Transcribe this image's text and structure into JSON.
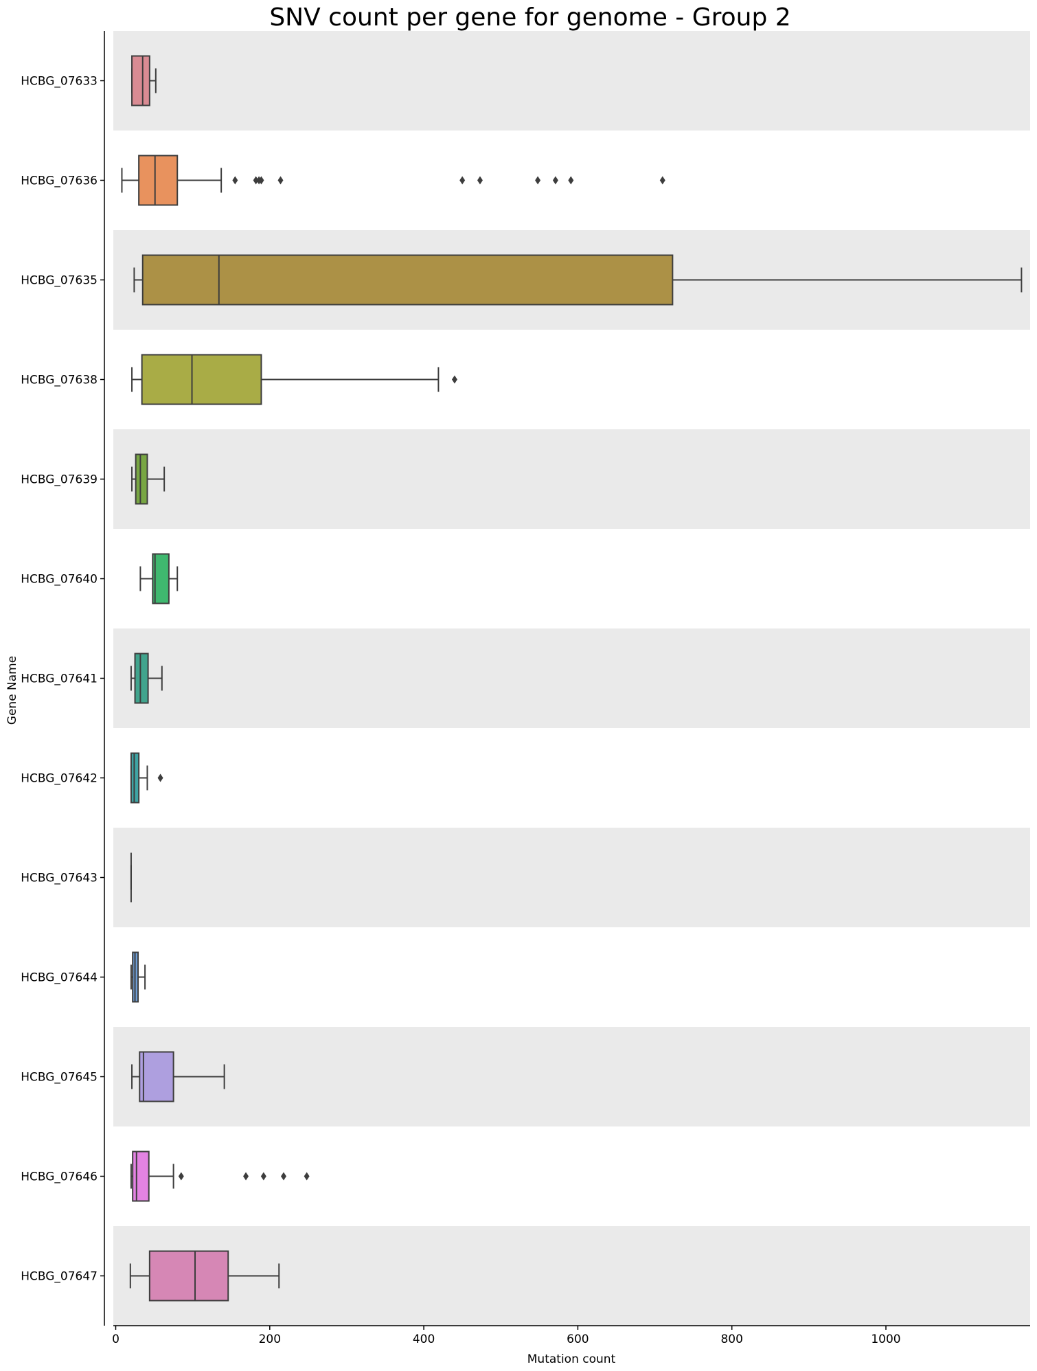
{
  "chart_data": {
    "type": "boxplot",
    "orientation": "horizontal",
    "title": "SNV count per gene for genome - Group 2",
    "xlabel": "Mutation count",
    "ylabel": "Gene Name",
    "xlim": [
      -5,
      1190
    ],
    "xticks": [
      0,
      200,
      400,
      600,
      800,
      1000
    ],
    "grid": false,
    "row_shading": "alternating-gray",
    "band_color": "#eaeaea",
    "series": [
      {
        "gene": "HCBG_07633",
        "color": "#d98b93",
        "whisker_low": 21,
        "q1": 21,
        "median": 35,
        "q3": 44,
        "whisker_high": 52,
        "outliers": []
      },
      {
        "gene": "HCBG_07636",
        "color": "#e8925e",
        "whisker_low": 8,
        "q1": 30,
        "median": 51,
        "q3": 80,
        "whisker_high": 137,
        "outliers": [
          155,
          182,
          186,
          189,
          214,
          450,
          473,
          548,
          571,
          591,
          710
        ]
      },
      {
        "gene": "HCBG_07635",
        "color": "#ac9146",
        "whisker_low": 24,
        "q1": 35,
        "median": 134,
        "q3": 723,
        "whisker_high": 1176,
        "outliers": []
      },
      {
        "gene": "HCBG_07638",
        "color": "#a9ac46",
        "whisker_low": 21,
        "q1": 34,
        "median": 99,
        "q3": 189,
        "whisker_high": 419,
        "outliers": [
          440
        ]
      },
      {
        "gene": "HCBG_07639",
        "color": "#78a643",
        "whisker_low": 21,
        "q1": 26,
        "median": 32,
        "q3": 41,
        "whisker_high": 63,
        "outliers": []
      },
      {
        "gene": "HCBG_07640",
        "color": "#3fb86f",
        "whisker_low": 32,
        "q1": 48,
        "median": 51,
        "q3": 69,
        "whisker_high": 80,
        "outliers": []
      },
      {
        "gene": "HCBG_07641",
        "color": "#41a48d",
        "whisker_low": 20,
        "q1": 25,
        "median": 32,
        "q3": 42,
        "whisker_high": 60,
        "outliers": []
      },
      {
        "gene": "HCBG_07642",
        "color": "#3fa4a4",
        "whisker_low": 20,
        "q1": 20,
        "median": 24,
        "q3": 30,
        "whisker_high": 41,
        "outliers": [
          58
        ]
      },
      {
        "gene": "HCBG_07643",
        "color": "#46a5b8",
        "whisker_low": 20,
        "q1": 20,
        "median": 20,
        "q3": 20,
        "whisker_high": 20,
        "outliers": []
      },
      {
        "gene": "HCBG_07644",
        "color": "#6f9fd8",
        "whisker_low": 20,
        "q1": 22,
        "median": 25,
        "q3": 29,
        "whisker_high": 38,
        "outliers": []
      },
      {
        "gene": "HCBG_07645",
        "color": "#ae9fdf",
        "whisker_low": 21,
        "q1": 31,
        "median": 36,
        "q3": 75,
        "whisker_high": 141,
        "outliers": []
      },
      {
        "gene": "HCBG_07646",
        "color": "#e383e2",
        "whisker_low": 20,
        "q1": 22,
        "median": 27,
        "q3": 43,
        "whisker_high": 75,
        "outliers": [
          85,
          169,
          192,
          218,
          248
        ]
      },
      {
        "gene": "HCBG_07647",
        "color": "#d687b5",
        "whisker_low": 19,
        "q1": 44,
        "median": 103,
        "q3": 146,
        "whisker_high": 212,
        "outliers": []
      }
    ]
  }
}
